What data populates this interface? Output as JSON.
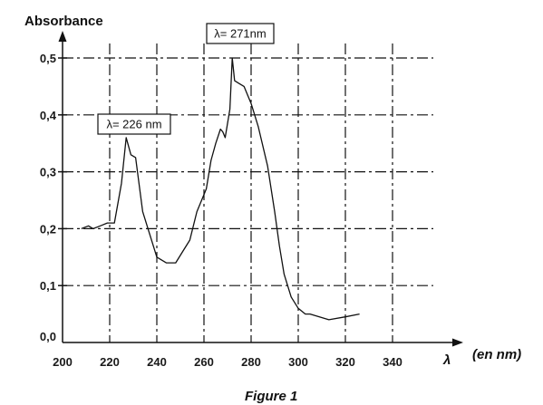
{
  "chart_data": {
    "type": "line",
    "ylabel": "Absorbance",
    "xlabel_symbol": "λ",
    "xlabel_unit": "(en nm)",
    "caption": "Figure 1",
    "xlim": [
      200,
      340
    ],
    "ylim": [
      0.0,
      0.5
    ],
    "x_ticks": [
      200,
      220,
      240,
      260,
      280,
      300,
      320,
      340
    ],
    "y_ticks": [
      0.0,
      0.1,
      0.2,
      0.3,
      0.4,
      0.5
    ],
    "y_tick_labels": [
      "0,0",
      "0,1",
      "0,2",
      "0,3",
      "0,4",
      "0,5"
    ],
    "grid": true,
    "grid_style": "dash-dot",
    "series": [
      {
        "x": [
          208,
          211,
          213,
          216,
          219,
          222,
          225,
          227,
          229,
          231,
          234,
          237,
          240,
          244,
          248,
          251,
          254,
          257,
          260,
          261,
          263,
          265,
          267,
          268,
          269,
          271,
          272,
          273,
          275,
          277,
          280,
          283,
          287,
          290,
          292,
          294,
          297,
          300,
          303,
          305,
          309,
          313,
          320,
          326
        ],
        "y": [
          0.2,
          0.205,
          0.2,
          0.205,
          0.21,
          0.21,
          0.28,
          0.36,
          0.33,
          0.325,
          0.23,
          0.19,
          0.15,
          0.14,
          0.14,
          0.16,
          0.18,
          0.23,
          0.26,
          0.27,
          0.32,
          0.35,
          0.375,
          0.37,
          0.36,
          0.41,
          0.5,
          0.46,
          0.455,
          0.45,
          0.42,
          0.38,
          0.31,
          0.23,
          0.17,
          0.12,
          0.08,
          0.06,
          0.05,
          0.05,
          0.045,
          0.04,
          0.045,
          0.05
        ]
      }
    ],
    "annotations": [
      {
        "text": "λ= 226 nm",
        "x": 226,
        "y": 0.36
      },
      {
        "text": "λ= 271nm",
        "x": 271,
        "y": 0.5
      }
    ]
  }
}
